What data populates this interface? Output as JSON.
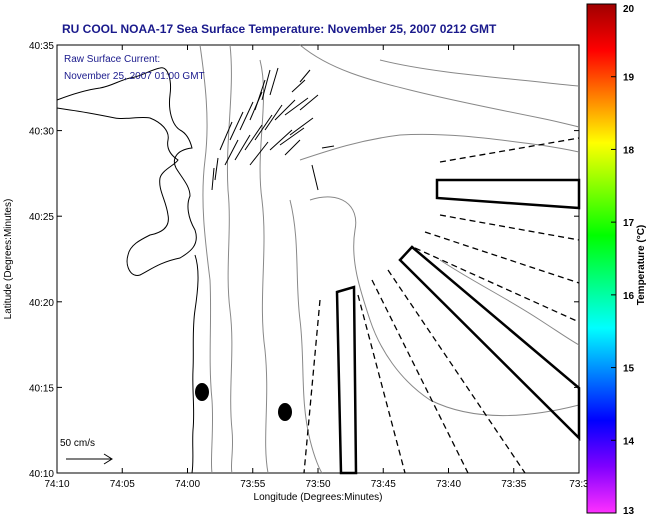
{
  "title": "RU COOL  NOAA-17  Sea Surface Temperature:  November 25, 2007 0212 GMT",
  "annotation": {
    "line1": "Raw Surface Current:",
    "line2": "November 25, 2007 01:00 GMT"
  },
  "axes": {
    "xlabel": "Longitude (Degrees:Minutes)",
    "ylabel": "Latitude (Degrees:Minutes)",
    "x_ticks": [
      "74:10",
      "74:05",
      "74:00",
      "73:55",
      "73:50",
      "73:45",
      "73:40",
      "73:35",
      "73:3"
    ],
    "y_ticks": [
      "40:35",
      "40:30",
      "40:25",
      "40:20",
      "40:15",
      "40:10"
    ]
  },
  "scale": {
    "label": "50 cm/s"
  },
  "colorbar": {
    "label": "Temperature (°C)",
    "ticks": [
      "20",
      "19",
      "18",
      "17",
      "16",
      "15",
      "14",
      "13"
    ],
    "min": 13,
    "max": 20,
    "colors": [
      "#ff30ff",
      "#8000ff",
      "#0000ff",
      "#0080ff",
      "#00ffff",
      "#00ff80",
      "#00ff00",
      "#80ff00",
      "#ffff00",
      "#ff8000",
      "#ff0000",
      "#a00000"
    ]
  }
}
